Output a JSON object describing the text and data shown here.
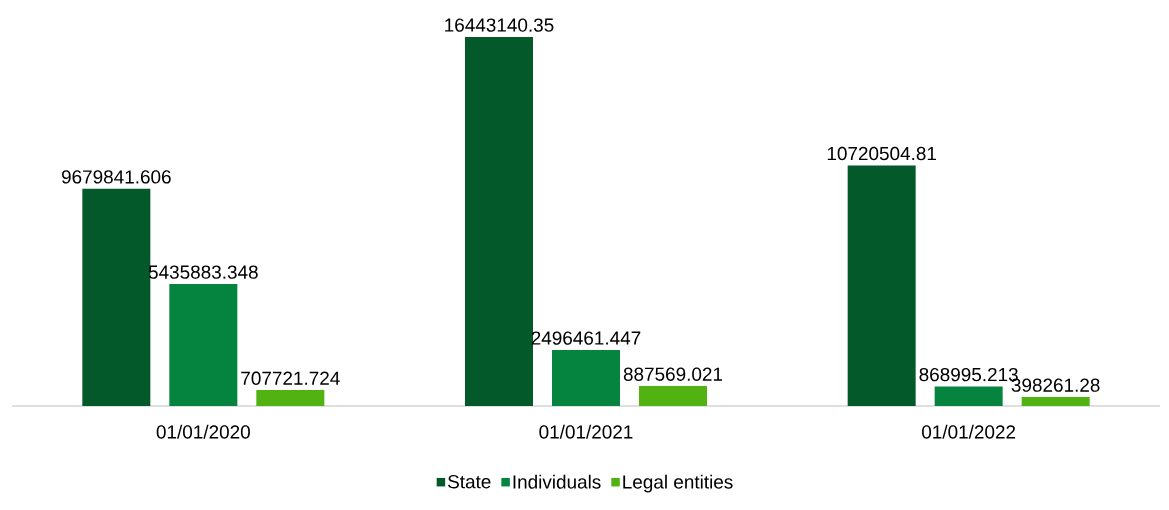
{
  "chart_data": {
    "type": "bar",
    "categories": [
      "01/01/2020",
      "01/01/2021",
      "01/01/2022"
    ],
    "series": [
      {
        "name": "State",
        "color": "#04592b",
        "values": [
          9679841.606,
          16443140.35,
          10720504.81
        ]
      },
      {
        "name": "Individuals",
        "color": "#04843e",
        "values": [
          5435883.348,
          2496461.447,
          868995.213
        ]
      },
      {
        "name": "Legal entities",
        "color": "#52b212",
        "values": [
          707721.724,
          887569.021,
          398261.28
        ]
      }
    ],
    "data_labels": true,
    "legend": "bottom"
  }
}
